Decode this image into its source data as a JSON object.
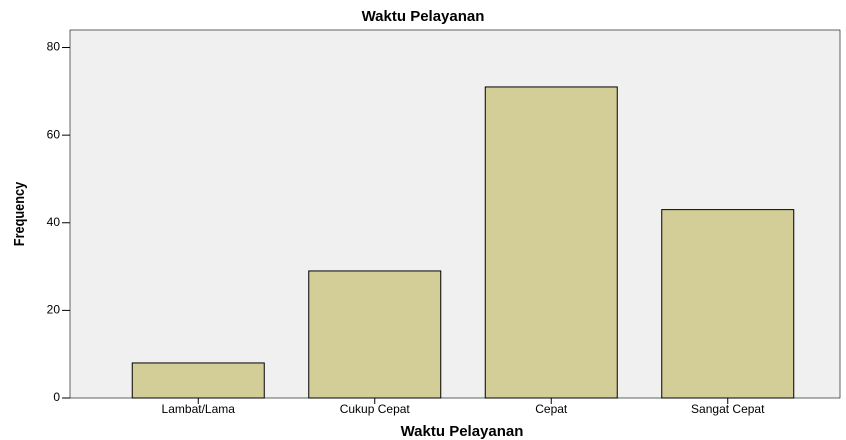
{
  "chart_data": {
    "type": "bar",
    "title": "Waktu Pelayanan",
    "x_label": "Waktu Pelayanan",
    "y_label": "Frequency",
    "categories": [
      "Lambat/Lama",
      "Cukup Cepat",
      "Cepat",
      "Sangat Cepat"
    ],
    "values": [
      8,
      29,
      71,
      43
    ],
    "color": "#d3ce97",
    "ylim": [
      0,
      84
    ],
    "yticks": [
      0,
      20,
      40,
      60,
      80
    ]
  }
}
